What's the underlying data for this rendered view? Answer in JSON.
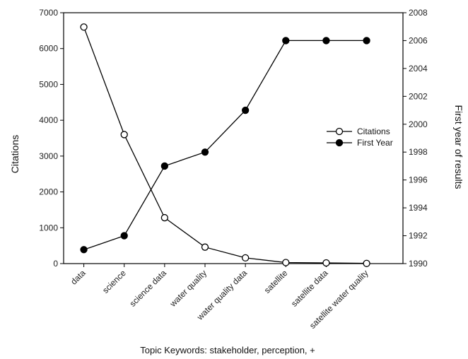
{
  "chart_data": {
    "type": "line",
    "categories": [
      "data",
      "science",
      "science data",
      "water quality",
      "water quality data",
      "satellite",
      "satellite data",
      "satellite water quality"
    ],
    "series": [
      {
        "name": "Citations",
        "axis": "left",
        "marker": "open-circle",
        "color": "#000000",
        "values": [
          6600,
          3600,
          1280,
          460,
          160,
          30,
          20,
          5
        ]
      },
      {
        "name": "First Year",
        "axis": "right",
        "marker": "filled-circle",
        "color": "#000000",
        "values": [
          1991,
          1992,
          1997,
          1998,
          2001,
          2006,
          2006,
          2006
        ]
      }
    ],
    "xlabel": "Topic Keywords: stakeholder, perception, +",
    "ylabel": "Citations",
    "y2label": "First year of results",
    "ylim": [
      0,
      7000
    ],
    "yticks": [
      0,
      1000,
      2000,
      3000,
      4000,
      5000,
      6000,
      7000
    ],
    "y2lim": [
      1990,
      2008
    ],
    "y2ticks": [
      1990,
      1992,
      1994,
      1996,
      1998,
      2000,
      2002,
      2004,
      2006,
      2008
    ],
    "grid": false,
    "legend": "right"
  }
}
